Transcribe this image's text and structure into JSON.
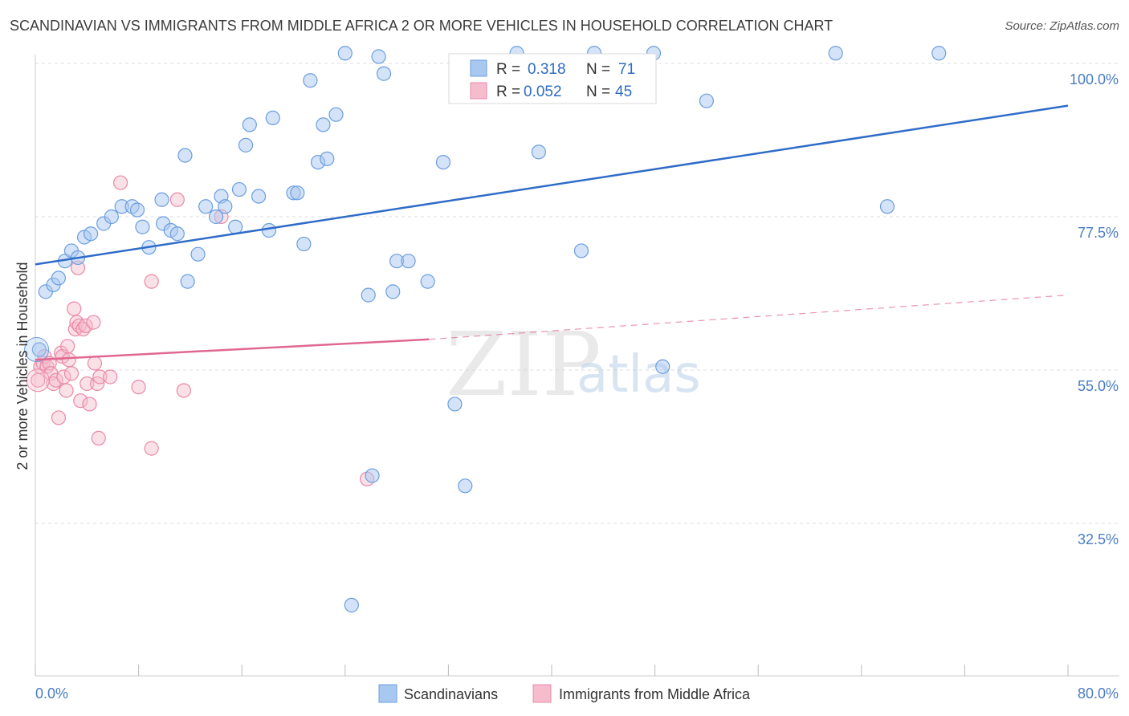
{
  "header": {
    "title": "SCANDINAVIAN VS IMMIGRANTS FROM MIDDLE AFRICA 2 OR MORE VEHICLES IN HOUSEHOLD CORRELATION CHART",
    "source": "Source: ZipAtlas.com"
  },
  "watermark": {
    "zip": "ZIP",
    "atlas": "atlas"
  },
  "legend_top": {
    "r_label": "R =",
    "n_label": "N =",
    "rows": [
      {
        "r": "0.318",
        "n": "71"
      },
      {
        "r": "0.052",
        "n": "45"
      }
    ]
  },
  "chart_data": {
    "type": "scatter",
    "title": "SCANDINAVIAN VS IMMIGRANTS FROM MIDDLE AFRICA 2 OR MORE VEHICLES IN HOUSEHOLD CORRELATION CHART",
    "xlabel": "",
    "ylabel": "2 or more Vehicles in Household",
    "xlim": [
      0,
      80
    ],
    "ylim": [
      10,
      101.5
    ],
    "x_tick_labels": [
      "0.0%",
      "80.0%"
    ],
    "y_ticks": [
      32.5,
      55.0,
      77.5,
      100.0
    ],
    "y_tick_labels": [
      "32.5%",
      "55.0%",
      "77.5%",
      "100.0%"
    ],
    "grid": true,
    "legend_position": "bottom",
    "colors": {
      "scandinavians": "#6b9ee0",
      "scandinavians_fill": "#a9c8f0",
      "middle_africa": "#eb88a8",
      "middle_africa_fill": "#f5bccd",
      "trend_blue": "#2f6cc8",
      "trend_pink": "#e06890",
      "tick_label": "#4a7cc4"
    },
    "series": [
      {
        "name": "Scandinavians",
        "r": 0.318,
        "n": 71,
        "trend": {
          "x": [
            0,
            80
          ],
          "y": [
            70.5,
            93.8
          ]
        },
        "points": [
          [
            0.3,
            58.0
          ],
          [
            0.8,
            66.5
          ],
          [
            1.4,
            67.5
          ],
          [
            1.8,
            68.5
          ],
          [
            2.3,
            71.0
          ],
          [
            2.8,
            72.5
          ],
          [
            3.3,
            71.5
          ],
          [
            3.8,
            74.5
          ],
          [
            4.3,
            75.0
          ],
          [
            5.3,
            76.5
          ],
          [
            5.9,
            77.5
          ],
          [
            6.7,
            79.0
          ],
          [
            7.5,
            79.0
          ],
          [
            7.9,
            78.5
          ],
          [
            8.3,
            76.0
          ],
          [
            8.8,
            73.0
          ],
          [
            9.8,
            80.0
          ],
          [
            9.9,
            76.5
          ],
          [
            10.5,
            75.5
          ],
          [
            11.0,
            75.0
          ],
          [
            11.6,
            86.5
          ],
          [
            11.8,
            68.0
          ],
          [
            12.6,
            72.0
          ],
          [
            13.2,
            79.0
          ],
          [
            14.0,
            77.5
          ],
          [
            14.4,
            80.5
          ],
          [
            14.7,
            79.0
          ],
          [
            15.5,
            76.0
          ],
          [
            15.8,
            81.5
          ],
          [
            16.3,
            88.0
          ],
          [
            16.6,
            91.0
          ],
          [
            17.3,
            80.5
          ],
          [
            18.1,
            75.5
          ],
          [
            18.4,
            92.0
          ],
          [
            20.0,
            81.0
          ],
          [
            20.3,
            81.0
          ],
          [
            20.8,
            73.5
          ],
          [
            21.3,
            97.5
          ],
          [
            21.9,
            85.5
          ],
          [
            22.3,
            91.0
          ],
          [
            22.6,
            86.0
          ],
          [
            23.3,
            92.5
          ],
          [
            24.0,
            101.5
          ],
          [
            24.5,
            20.5
          ],
          [
            25.8,
            66.0
          ],
          [
            26.1,
            39.5
          ],
          [
            26.6,
            101.0
          ],
          [
            27.0,
            98.5
          ],
          [
            27.7,
            66.5
          ],
          [
            28.0,
            71.0
          ],
          [
            28.9,
            71.0
          ],
          [
            30.4,
            68.0
          ],
          [
            31.6,
            85.5
          ],
          [
            32.5,
            50.0
          ],
          [
            33.3,
            38.0
          ],
          [
            37.3,
            101.5
          ],
          [
            39.0,
            87.0
          ],
          [
            42.3,
            72.5
          ],
          [
            43.3,
            101.5
          ],
          [
            47.9,
            101.5
          ],
          [
            48.6,
            55.5
          ],
          [
            52.0,
            94.5
          ],
          [
            62.0,
            101.5
          ],
          [
            66.0,
            79.0
          ],
          [
            70.0,
            101.5
          ]
        ]
      },
      {
        "name": "Immigrants from Middle Africa",
        "r": 0.052,
        "n": 45,
        "trend": {
          "x": [
            0,
            30.5
          ],
          "y": [
            56.5,
            59.5
          ]
        },
        "trend_dashed": {
          "x": [
            30.5,
            80
          ],
          "y": [
            59.5,
            66.0
          ]
        },
        "points": [
          [
            0.2,
            53.5
          ],
          [
            0.4,
            55.5
          ],
          [
            0.6,
            56.0
          ],
          [
            0.7,
            57.0
          ],
          [
            0.9,
            55.5
          ],
          [
            1.1,
            56.0
          ],
          [
            1.2,
            54.5
          ],
          [
            1.4,
            53.0
          ],
          [
            1.6,
            53.5
          ],
          [
            1.8,
            48.0
          ],
          [
            2.0,
            57.5
          ],
          [
            2.1,
            57.0
          ],
          [
            2.2,
            54.0
          ],
          [
            2.4,
            52.0
          ],
          [
            2.5,
            58.5
          ],
          [
            2.6,
            56.5
          ],
          [
            2.8,
            54.5
          ],
          [
            3.0,
            64.0
          ],
          [
            3.1,
            61.0
          ],
          [
            3.2,
            62.0
          ],
          [
            3.3,
            70.0
          ],
          [
            3.4,
            61.5
          ],
          [
            3.5,
            50.5
          ],
          [
            3.7,
            61.0
          ],
          [
            3.9,
            61.5
          ],
          [
            4.0,
            53.0
          ],
          [
            4.2,
            50.0
          ],
          [
            4.5,
            62.0
          ],
          [
            4.6,
            56.0
          ],
          [
            4.8,
            53.0
          ],
          [
            4.9,
            45.0
          ],
          [
            5.0,
            54.0
          ],
          [
            5.8,
            54.0
          ],
          [
            6.6,
            82.5
          ],
          [
            8.0,
            52.5
          ],
          [
            9.0,
            43.5
          ],
          [
            9.0,
            68.0
          ],
          [
            11.0,
            80.0
          ],
          [
            11.5,
            52.0
          ],
          [
            14.4,
            77.5
          ],
          [
            25.7,
            39.0
          ]
        ]
      }
    ]
  },
  "bottom_legend": {
    "items": [
      "Scandinavians",
      "Immigrants from Middle Africa"
    ]
  }
}
